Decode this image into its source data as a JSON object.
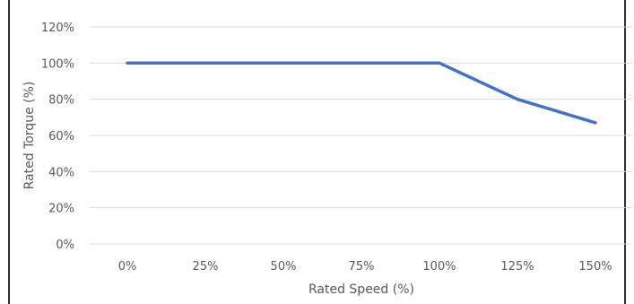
{
  "chart_data": {
    "type": "line",
    "title": "",
    "xlabel": "Rated Speed (%)",
    "ylabel": "Rated Torque (%)",
    "categories": [
      "0%",
      "25%",
      "50%",
      "75%",
      "100%",
      "125%",
      "150%"
    ],
    "x": [
      0,
      25,
      50,
      75,
      100,
      125,
      150
    ],
    "y_ticks": [
      "0%",
      "20%",
      "40%",
      "60%",
      "80%",
      "100%",
      "120%"
    ],
    "y_tick_values": [
      0,
      20,
      40,
      60,
      80,
      100,
      120
    ],
    "ylim": [
      0,
      120
    ],
    "grid": "horizontal",
    "legend": "none",
    "series": [
      {
        "color": "#4472c4",
        "x": [
          0,
          25,
          50,
          75,
          100,
          125,
          150
        ],
        "values": [
          100,
          100,
          100,
          100,
          100,
          80,
          67
        ]
      }
    ],
    "colors": {
      "grid": "#d9d9d9",
      "text": "#555a63",
      "frame": "#2b2f3a"
    }
  }
}
